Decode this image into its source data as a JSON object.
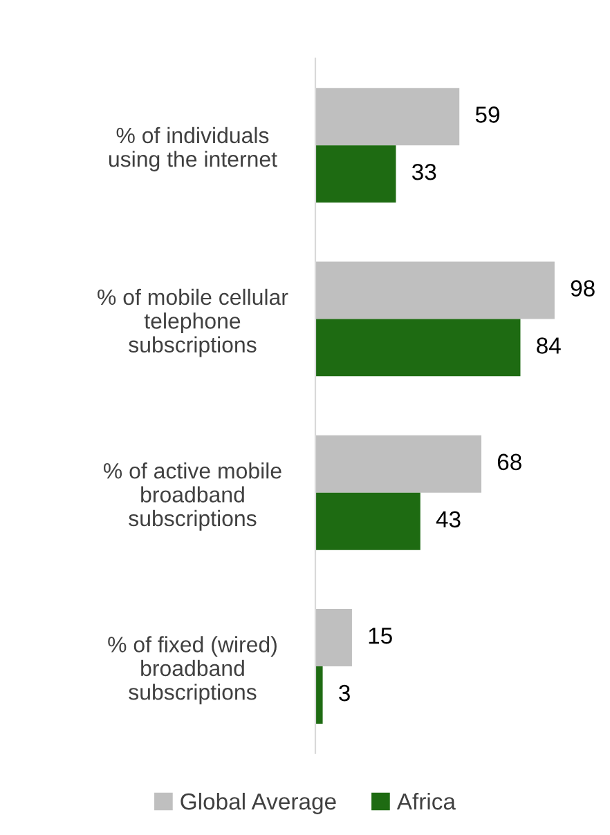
{
  "chart_data": {
    "type": "bar",
    "orientation": "horizontal",
    "categories": [
      "% of individuals\nusing the internet",
      "% of mobile cellular\ntelephone\nsubscriptions",
      "% of active mobile\nbroadband\nsubscriptions",
      "% of fixed (wired)\nbroadband\nsubscriptions"
    ],
    "series": [
      {
        "name": "Global Average",
        "color": "#bfbfbf",
        "values": [
          59,
          98,
          68,
          15
        ]
      },
      {
        "name": "Africa",
        "color": "#1e6b12",
        "values": [
          33,
          84,
          43,
          3
        ]
      }
    ],
    "data_labels": true,
    "legend": "bottom",
    "grid": false
  }
}
